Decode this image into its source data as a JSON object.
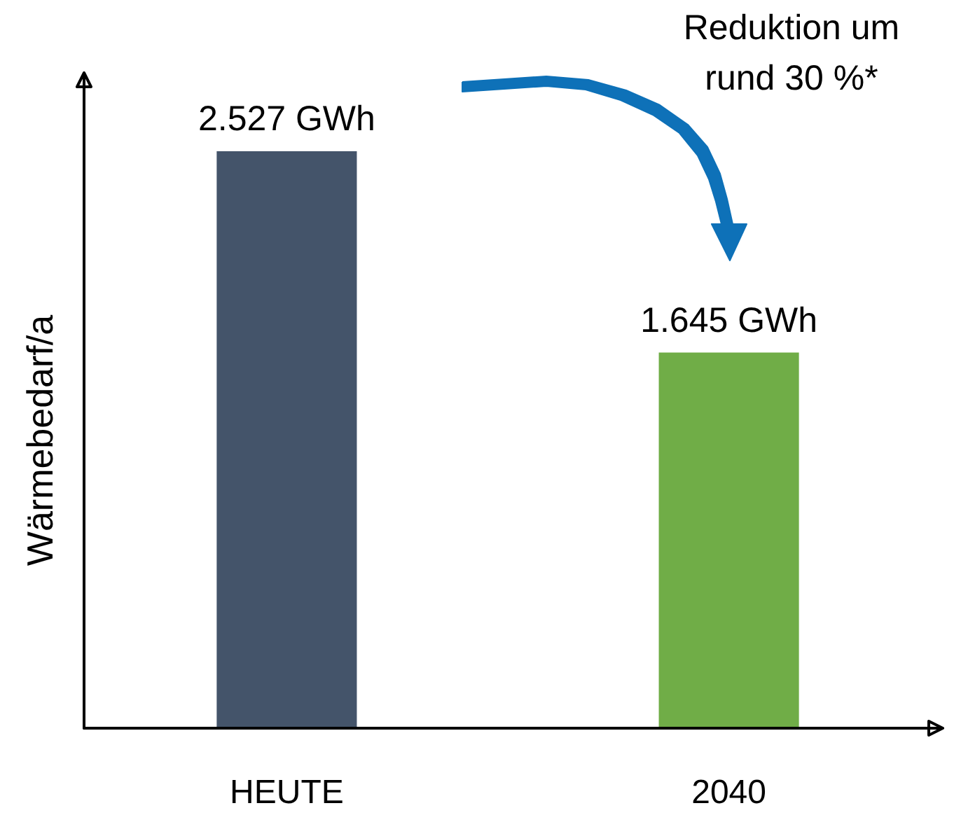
{
  "chart_data": {
    "type": "bar",
    "categories": [
      "HEUTE",
      "2040"
    ],
    "values": [
      2527,
      1645
    ],
    "colors": [
      "#44546a",
      "#70ad47"
    ],
    "value_labels": [
      "2.527 GWh",
      "1.645 GWh"
    ],
    "ylabel": "Wärmebedarf/a",
    "tick_labels": "x",
    "grid": false,
    "annotations": [
      "Reduktion um rund 30 %*"
    ]
  }
}
